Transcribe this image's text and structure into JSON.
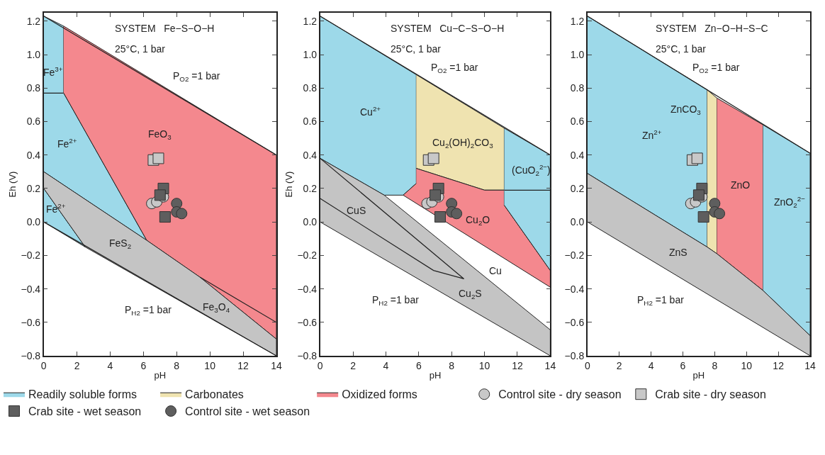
{
  "chart_data": [
    {
      "type": "scatter",
      "xlabel": "pH",
      "ylabel": "Eh (V)",
      "xlim": [
        0,
        14
      ],
      "ylim": [
        -0.8,
        1.25
      ],
      "xticks": [
        0,
        2,
        4,
        6,
        8,
        10,
        12,
        14
      ],
      "yticks": [
        {
          "value": -0.8,
          "label": "−0.8"
        },
        {
          "value": -0.6,
          "label": "−0.6"
        },
        {
          "value": -0.4,
          "label": "−0.4"
        },
        {
          "value": -0.2,
          "label": "−0.2"
        },
        {
          "value": 0,
          "label": "0.0"
        },
        {
          "value": 0.2,
          "label": "0.2"
        },
        {
          "value": 0.4,
          "label": "0.4"
        },
        {
          "value": 0.6,
          "label": "0.6"
        },
        {
          "value": 0.8,
          "label": "0.8"
        },
        {
          "value": 1.0,
          "label": "1.0"
        },
        {
          "value": 1.2,
          "label": "1.2"
        }
      ],
      "annotations": [
        "SYSTEM   Fe−S−O−H",
        "25°C, 1 bar",
        "Fe$^{3+}$",
        "Fe$^{2+}$",
        "Fe$^{2+}$",
        "FeO$_{3}$",
        "FeS$_{2}$",
        "Fe$_{3}$O$_{4}$",
        "P$_{O2}$ =1 bar",
        "P$_{H2}$ =1 bar"
      ],
      "series": [
        {
          "type": "area",
          "color": "#9dd9e9",
          "x": [
            0,
            1.2,
            1.2,
            6.2,
            0,
            null,
            0,
            2.5,
            0
          ],
          "values": [
            1.23,
            1.17,
            0.77,
            -0.11,
            0.3,
            null,
            0.2,
            -0.15,
            0
          ]
        },
        {
          "type": "line",
          "color": "#222222",
          "x": [
            0,
            1.2
          ],
          "values": [
            0.77,
            0.77
          ]
        },
        {
          "type": "area",
          "color": "#f4888e",
          "x": [
            1.2,
            14,
            14,
            9.4,
            6.2,
            1.2
          ],
          "values": [
            1.17,
            0.4,
            -0.7,
            -0.33,
            -0.11,
            0.77
          ]
        },
        {
          "type": "area",
          "color": "#c4c4c4",
          "x": [
            0,
            6.2,
            9.4,
            14,
            14,
            2.5,
            0
          ],
          "values": [
            0.3,
            -0.11,
            -0.33,
            -0.7,
            -0.8,
            -0.15,
            0.2
          ]
        },
        {
          "type": "line",
          "color": "#222222",
          "x": [
            0,
            14
          ],
          "values": [
            1.23,
            0.4
          ]
        },
        {
          "type": "line",
          "color": "#222222",
          "x": [
            0,
            14
          ],
          "values": [
            0,
            -0.8
          ]
        },
        {
          "type": "line",
          "color": "#222222",
          "x": [
            9.4,
            11.7,
            14
          ],
          "values": [
            -0.33,
            -0.465,
            -0.6
          ]
        },
        {
          "marker": "circle",
          "color": "#c8c8c8",
          "x": [
            6.5,
            6.8,
            7.2
          ],
          "values": [
            0.11,
            0.12,
            0.15
          ]
        },
        {
          "marker": "square",
          "color": "#c8c8c8",
          "x": [
            6.6,
            6.9
          ],
          "values": [
            0.37,
            0.38
          ]
        },
        {
          "marker": "square",
          "color": "#5e5e5e",
          "x": [
            7.2,
            7.0,
            7.3
          ],
          "values": [
            0.2,
            0.16,
            0.03
          ]
        },
        {
          "marker": "circle",
          "color": "#5e5e5e",
          "x": [
            8.0,
            8.0,
            8.3
          ],
          "values": [
            0.11,
            0.06,
            0.05
          ]
        }
      ]
    },
    {
      "type": "scatter",
      "xlabel": "pH",
      "ylabel": "Eh (V)",
      "xlim": [
        0,
        14
      ],
      "ylim": [
        -0.8,
        1.25
      ],
      "legend": "bottom",
      "xticks": [
        0,
        2,
        4,
        6,
        8,
        10,
        12,
        14
      ],
      "yticks": [
        {
          "value": -0.8,
          "label": "−0.8"
        },
        {
          "value": -0.6,
          "label": "−0.6"
        },
        {
          "value": -0.4,
          "label": "−0.4"
        },
        {
          "value": -0.2,
          "label": "−0.2"
        },
        {
          "value": 0,
          "label": "0.0"
        },
        {
          "value": 0.2,
          "label": "0.2"
        },
        {
          "value": 0.4,
          "label": "0.4"
        },
        {
          "value": 0.6,
          "label": "0.6"
        },
        {
          "value": 0.8,
          "label": "0.8"
        },
        {
          "value": 1.0,
          "label": "1.0"
        },
        {
          "value": 1.2,
          "label": "1.2"
        }
      ],
      "annotations": [
        "SYSTEM   Cu−C−S−O−H",
        "25°C, 1 bar",
        "Cu$^{2+}$",
        "Cu$_{2}$(OH)$_{2}$CO$_{3}$",
        "(CuO$_{2}$$^{2−}$)",
        "Cu$_{2}$O",
        "CuS",
        "Cu",
        "Cu$_{2}$S",
        "P$_{O2}$ =1 bar",
        "P$_{H2}$ =1 bar"
      ],
      "series": [
        {
          "type": "area",
          "name": "Readily soluble forms",
          "color": "#9dd9e9",
          "x": [
            0,
            5.85,
            5.85,
            5.05,
            3.9,
            0
          ],
          "values": [
            1.23,
            0.88,
            0.23,
            0.16,
            0.16,
            0.38
          ]
        },
        {
          "type": "area",
          "name": "Carbonates",
          "color": "#efe3b0",
          "x": [
            5.85,
            11.2,
            11.2,
            10,
            5.85
          ],
          "values": [
            0.88,
            0.56,
            0.19,
            0.19,
            0.32
          ]
        },
        {
          "type": "area",
          "name": "Oxidized forms",
          "color": "#f4888e",
          "x": [
            5.85,
            10,
            11.2,
            11.2,
            14,
            14,
            5.05,
            5.85
          ],
          "values": [
            0.32,
            0.19,
            0.19,
            0.1,
            -0.29,
            -0.39,
            0.16,
            0.23
          ]
        },
        {
          "type": "area",
          "color": "#9dd9e9",
          "x": [
            11.2,
            14,
            14,
            11.2
          ],
          "values": [
            0.56,
            0.4,
            -0.29,
            0.1
          ]
        },
        {
          "type": "area",
          "color": "#c4c4c4",
          "x": [
            0,
            3.9,
            14,
            14,
            0
          ],
          "values": [
            0.38,
            0.16,
            -0.645,
            -0.8,
            0
          ]
        },
        {
          "type": "line",
          "color": "#222222",
          "x": [
            0,
            14
          ],
          "values": [
            1.23,
            0.4
          ]
        },
        {
          "type": "line",
          "color": "#222222",
          "x": [
            11.2,
            14
          ],
          "values": [
            0.19,
            0.19
          ]
        },
        {
          "type": "line",
          "color": "#222222",
          "x": [
            0,
            8.75,
            6.9,
            0
          ],
          "values": [
            0.38,
            -0.34,
            -0.29,
            0.14
          ]
        },
        {
          "name": "Control site - dry season",
          "marker": "circle",
          "color": "#c8c8c8",
          "x": [
            6.5,
            6.8,
            7.2
          ],
          "values": [
            0.11,
            0.12,
            0.15
          ]
        },
        {
          "name": "Crab site - dry season",
          "marker": "square",
          "color": "#c8c8c8",
          "x": [
            6.6,
            6.9
          ],
          "values": [
            0.37,
            0.38
          ]
        },
        {
          "name": "Crab site - wet season",
          "marker": "square",
          "color": "#5e5e5e",
          "x": [
            7.2,
            7.0,
            7.3
          ],
          "values": [
            0.2,
            0.16,
            0.03
          ]
        },
        {
          "name": "Control site - wet season",
          "marker": "circle",
          "color": "#5e5e5e",
          "x": [
            8.0,
            8.0,
            8.3
          ],
          "values": [
            0.11,
            0.06,
            0.05
          ]
        }
      ]
    },
    {
      "type": "scatter",
      "xlabel": "pH",
      "xlim": [
        0,
        14
      ],
      "ylim": [
        -0.8,
        1.25
      ],
      "xticks": [
        0,
        2,
        4,
        6,
        8,
        10,
        12,
        14
      ],
      "yticks": [
        {
          "value": -0.8,
          "label": "−0.8"
        },
        {
          "value": -0.6,
          "label": "−0.6"
        },
        {
          "value": -0.4,
          "label": "−0.4"
        },
        {
          "value": -0.2,
          "label": "−0.2"
        },
        {
          "value": 0,
          "label": "0.0"
        },
        {
          "value": 0.2,
          "label": "0.2"
        },
        {
          "value": 0.4,
          "label": "0.4"
        },
        {
          "value": 0.6,
          "label": "0.6"
        },
        {
          "value": 0.8,
          "label": "0.8"
        },
        {
          "value": 1.0,
          "label": "1.0"
        },
        {
          "value": 1.2,
          "label": "1.2"
        }
      ],
      "annotations": [
        "SYSTEM   Zn−O−H−S−C",
        "25°C, 1 bar",
        "Zn$^{2+}$",
        "ZnCO$_{3}$",
        "ZnO",
        "ZnO$_{2}$$^{2−}$",
        "ZnS",
        "P$_{O2}$ =1 bar",
        "P$_{H2}$ =1 bar"
      ],
      "series": [
        {
          "type": "area",
          "color": "#9dd9e9",
          "x": [
            0,
            7.53,
            7.53,
            0
          ],
          "values": [
            1.23,
            0.79,
            -0.15,
            0.29
          ]
        },
        {
          "type": "area",
          "color": "#efe3b0",
          "x": [
            7.53,
            8.14,
            8.14,
            7.53
          ],
          "values": [
            0.79,
            0.74,
            -0.19,
            -0.15
          ]
        },
        {
          "type": "area",
          "color": "#f4888e",
          "x": [
            8.14,
            11.04,
            11.04,
            8.14
          ],
          "values": [
            0.74,
            0.58,
            -0.41,
            -0.19
          ]
        },
        {
          "type": "area",
          "color": "#9dd9e9",
          "x": [
            11.04,
            14,
            14,
            11.04
          ],
          "values": [
            0.58,
            0.41,
            -0.68,
            -0.41
          ]
        },
        {
          "type": "area",
          "color": "#c4c4c4",
          "x": [
            0,
            7.53,
            8.14,
            11.04,
            14,
            14,
            0
          ],
          "values": [
            0.29,
            -0.15,
            -0.19,
            -0.41,
            -0.68,
            -0.8,
            0
          ]
        },
        {
          "type": "line",
          "color": "#222222",
          "x": [
            0,
            14
          ],
          "values": [
            1.23,
            0.41
          ]
        },
        {
          "marker": "circle",
          "color": "#c8c8c8",
          "x": [
            6.5,
            6.8,
            7.2
          ],
          "values": [
            0.11,
            0.12,
            0.15
          ]
        },
        {
          "marker": "square",
          "color": "#c8c8c8",
          "x": [
            6.6,
            6.9
          ],
          "values": [
            0.37,
            0.38
          ]
        },
        {
          "marker": "square",
          "color": "#5e5e5e",
          "x": [
            7.2,
            7.0,
            7.3
          ],
          "values": [
            0.2,
            0.16,
            0.03
          ]
        },
        {
          "marker": "circle",
          "color": "#5e5e5e",
          "x": [
            8.0,
            8.0,
            8.3
          ],
          "values": [
            0.11,
            0.06,
            0.05
          ]
        }
      ]
    }
  ]
}
